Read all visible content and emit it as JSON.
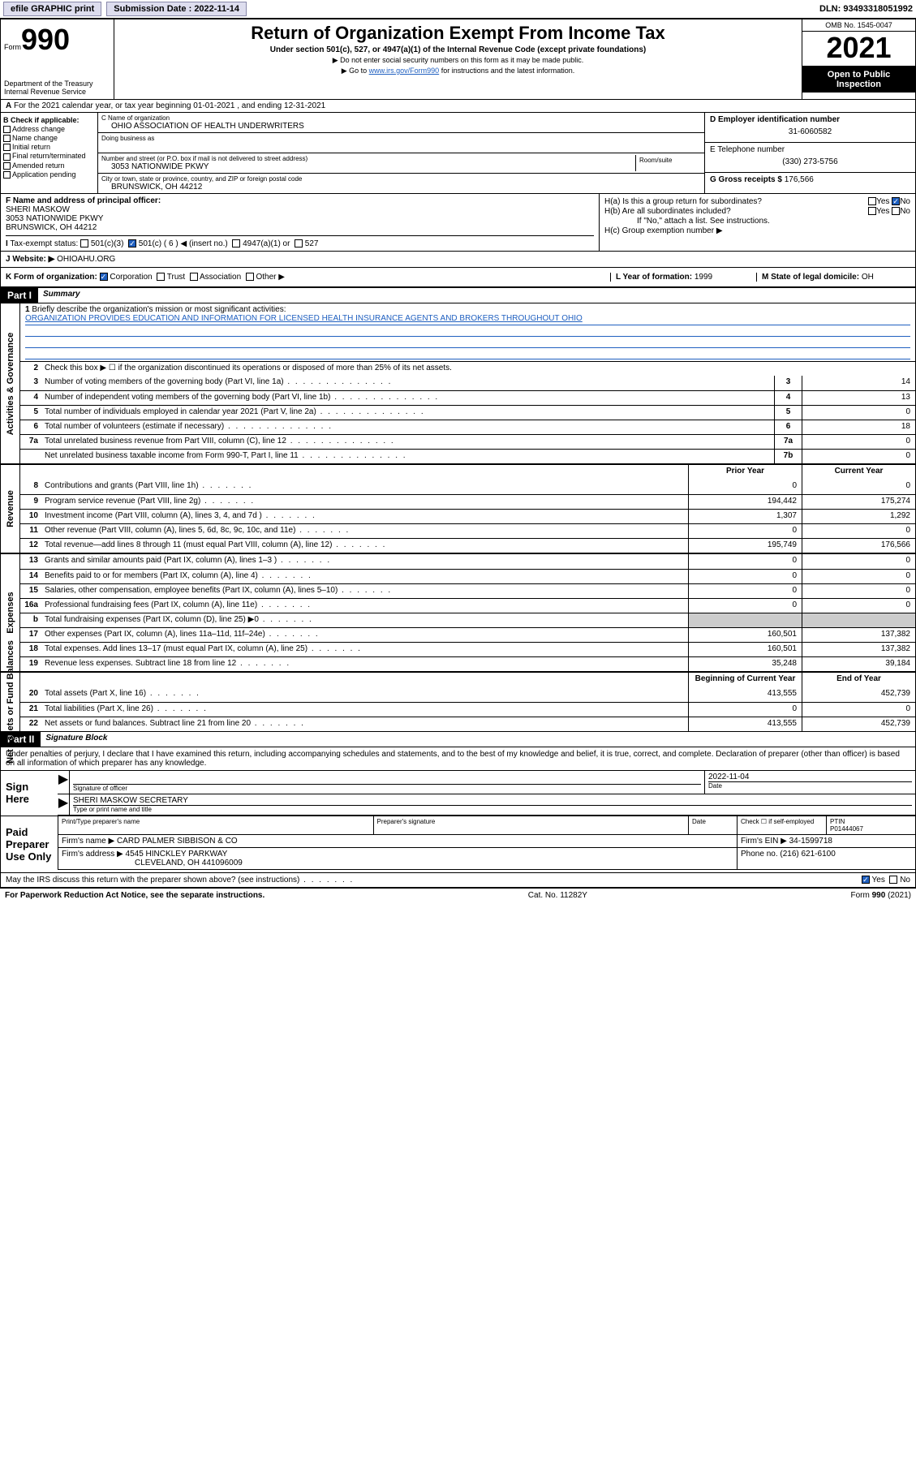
{
  "topbar": {
    "efile": "efile GRAPHIC print",
    "sub_label": "Submission Date : 2022-11-14",
    "dln": "DLN: 93493318051992"
  },
  "header": {
    "form_word": "Form",
    "form_num": "990",
    "dept": "Department of the Treasury\nInternal Revenue Service",
    "title": "Return of Organization Exempt From Income Tax",
    "sub": "Under section 501(c), 527, or 4947(a)(1) of the Internal Revenue Code (except private foundations)",
    "note1": "▶ Do not enter social security numbers on this form as it may be made public.",
    "note2_pre": "▶ Go to ",
    "note2_link": "www.irs.gov/Form990",
    "note2_post": " for instructions and the latest information.",
    "omb": "OMB No. 1545-0047",
    "year": "2021",
    "inspect": "Open to Public Inspection"
  },
  "rowA": "For the 2021 calendar year, or tax year beginning 01-01-2021   , and ending 12-31-2021",
  "colB": {
    "hdr": "B Check if applicable:",
    "items": [
      "Address change",
      "Name change",
      "Initial return",
      "Final return/terminated",
      "Amended return",
      "Application pending"
    ]
  },
  "colC": {
    "name_lbl": "C Name of organization",
    "name": "OHIO ASSOCIATION OF HEALTH UNDERWRITERS",
    "dba_lbl": "Doing business as",
    "street_lbl": "Number and street (or P.O. box if mail is not delivered to street address)",
    "room_lbl": "Room/suite",
    "street": "3053 NATIONWIDE PKWY",
    "city_lbl": "City or town, state or province, country, and ZIP or foreign postal code",
    "city": "BRUNSWICK, OH  44212"
  },
  "colD": {
    "d_lbl": "D Employer identification number",
    "d_val": "31-6060582",
    "e_lbl": "E Telephone number",
    "e_val": "(330) 273-5756",
    "g_lbl": "G Gross receipts $ ",
    "g_val": "176,566"
  },
  "rowF": {
    "lbl": "F Name and address of principal officer:",
    "l1": "SHERI MASKOW",
    "l2": "3053 NATIONWIDE PKWY",
    "l3": "BRUNSWICK, OH  44212"
  },
  "rowH": {
    "ha": "H(a)  Is this a group return for subordinates?",
    "hb": "H(b)  Are all subordinates included?",
    "hb_note": "If \"No,\" attach a list. See instructions.",
    "hc": "H(c)  Group exemption number ▶",
    "yes": "Yes",
    "no": "No"
  },
  "rowI": {
    "lbl": "Tax-exempt status:",
    "o1": "501(c)(3)",
    "o2": "501(c) ( 6 ) ◀ (insert no.)",
    "o3": "4947(a)(1) or",
    "o4": "527"
  },
  "rowJ": {
    "lbl": "J   Website: ▶",
    "val": "OHIOAHU.ORG"
  },
  "rowK": {
    "lbl": "K Form of organization:",
    "opts": [
      "Corporation",
      "Trust",
      "Association",
      "Other ▶"
    ],
    "l_lbl": "L Year of formation: ",
    "l_val": "1999",
    "m_lbl": "M State of legal domicile: ",
    "m_val": "OH"
  },
  "part1": {
    "hdr": "Part I",
    "title": "Summary",
    "tab_ag": "Activities & Governance",
    "tab_rev": "Revenue",
    "tab_exp": "Expenses",
    "tab_na": "Net Assets or Fund Balances",
    "l1": "Briefly describe the organization's mission or most significant activities:",
    "l1val": "ORGANIZATION PROVIDES EDUCATION AND INFORMATION FOR LICENSED HEALTH INSURANCE AGENTS AND BROKERS THROUGHOUT OHIO",
    "l2": "Check this box ▶ ☐  if the organization discontinued its operations or disposed of more than 25% of its net assets.",
    "lines_ag": [
      {
        "n": "3",
        "d": "Number of voting members of the governing body (Part VI, line 1a)",
        "b": "3",
        "v": "14"
      },
      {
        "n": "4",
        "d": "Number of independent voting members of the governing body (Part VI, line 1b)",
        "b": "4",
        "v": "13"
      },
      {
        "n": "5",
        "d": "Total number of individuals employed in calendar year 2021 (Part V, line 2a)",
        "b": "5",
        "v": "0"
      },
      {
        "n": "6",
        "d": "Total number of volunteers (estimate if necessary)",
        "b": "6",
        "v": "18"
      },
      {
        "n": "7a",
        "d": "Total unrelated business revenue from Part VIII, column (C), line 12",
        "b": "7a",
        "v": "0"
      },
      {
        "n": "",
        "d": "Net unrelated business taxable income from Form 990-T, Part I, line 11",
        "b": "7b",
        "v": "0"
      }
    ],
    "hdr_prior": "Prior Year",
    "hdr_curr": "Current Year",
    "lines_rev": [
      {
        "n": "8",
        "d": "Contributions and grants (Part VIII, line 1h)",
        "p": "0",
        "c": "0"
      },
      {
        "n": "9",
        "d": "Program service revenue (Part VIII, line 2g)",
        "p": "194,442",
        "c": "175,274"
      },
      {
        "n": "10",
        "d": "Investment income (Part VIII, column (A), lines 3, 4, and 7d )",
        "p": "1,307",
        "c": "1,292"
      },
      {
        "n": "11",
        "d": "Other revenue (Part VIII, column (A), lines 5, 6d, 8c, 9c, 10c, and 11e)",
        "p": "0",
        "c": "0"
      },
      {
        "n": "12",
        "d": "Total revenue—add lines 8 through 11 (must equal Part VIII, column (A), line 12)",
        "p": "195,749",
        "c": "176,566"
      }
    ],
    "lines_exp": [
      {
        "n": "13",
        "d": "Grants and similar amounts paid (Part IX, column (A), lines 1–3 )",
        "p": "0",
        "c": "0"
      },
      {
        "n": "14",
        "d": "Benefits paid to or for members (Part IX, column (A), line 4)",
        "p": "0",
        "c": "0"
      },
      {
        "n": "15",
        "d": "Salaries, other compensation, employee benefits (Part IX, column (A), lines 5–10)",
        "p": "0",
        "c": "0"
      },
      {
        "n": "16a",
        "d": "Professional fundraising fees (Part IX, column (A), line 11e)",
        "p": "0",
        "c": "0"
      },
      {
        "n": "b",
        "d": "Total fundraising expenses (Part IX, column (D), line 25) ▶0",
        "p": "",
        "c": "",
        "grey": true
      },
      {
        "n": "17",
        "d": "Other expenses (Part IX, column (A), lines 11a–11d, 11f–24e)",
        "p": "160,501",
        "c": "137,382"
      },
      {
        "n": "18",
        "d": "Total expenses. Add lines 13–17 (must equal Part IX, column (A), line 25)",
        "p": "160,501",
        "c": "137,382"
      },
      {
        "n": "19",
        "d": "Revenue less expenses. Subtract line 18 from line 12",
        "p": "35,248",
        "c": "39,184"
      }
    ],
    "hdr_beg": "Beginning of Current Year",
    "hdr_end": "End of Year",
    "lines_na": [
      {
        "n": "20",
        "d": "Total assets (Part X, line 16)",
        "p": "413,555",
        "c": "452,739"
      },
      {
        "n": "21",
        "d": "Total liabilities (Part X, line 26)",
        "p": "0",
        "c": "0"
      },
      {
        "n": "22",
        "d": "Net assets or fund balances. Subtract line 21 from line 20",
        "p": "413,555",
        "c": "452,739"
      }
    ]
  },
  "part2": {
    "hdr": "Part II",
    "title": "Signature Block",
    "note": "Under penalties of perjury, I declare that I have examined this return, including accompanying schedules and statements, and to the best of my knowledge and belief, it is true, correct, and complete. Declaration of preparer (other than officer) is based on all information of which preparer has any knowledge.",
    "sign_here": "Sign Here",
    "sig_officer": "Signature of officer",
    "sig_date": "2022-11-04",
    "date_lbl": "Date",
    "typed": "SHERI MASKOW  SECRETARY",
    "typed_lbl": "Type or print name and title",
    "paid": "Paid Preparer Use Only",
    "p_name_lbl": "Print/Type preparer's name",
    "p_sig_lbl": "Preparer's signature",
    "p_date_lbl": "Date",
    "p_check": "Check ☐ if self-employed",
    "ptin_lbl": "PTIN",
    "ptin": "P01444067",
    "firm_name_lbl": "Firm's name    ▶",
    "firm_name": "CARD PALMER SIBBISON & CO",
    "firm_ein_lbl": "Firm's EIN ▶",
    "firm_ein": "34-1599718",
    "firm_addr_lbl": "Firm's address ▶",
    "firm_addr1": "4545 HINCKLEY PARKWAY",
    "firm_addr2": "CLEVELAND, OH  441096009",
    "phone_lbl": "Phone no. ",
    "phone": "(216) 621-6100",
    "may_irs": "May the IRS discuss this return with the preparer shown above? (see instructions)"
  },
  "footer": {
    "l": "For Paperwork Reduction Act Notice, see the separate instructions.",
    "c": "Cat. No. 11282Y",
    "r": "Form 990 (2021)"
  },
  "colors": {
    "link": "#2060c0",
    "checked": "#2060c0"
  }
}
